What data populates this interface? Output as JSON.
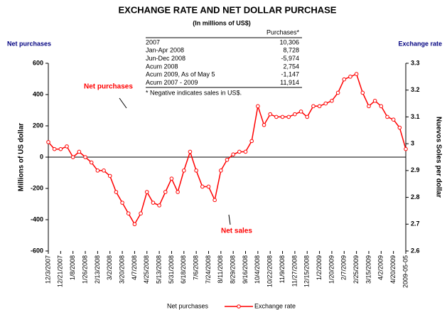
{
  "chart_data": {
    "type": "line",
    "title": "EXCHANGE RATE AND NET DOLLAR PURCHASE",
    "subtitle": "(In millions of US$)",
    "y_label_top": "Net purchases",
    "y2_label_top": "Exchange rate",
    "y_label": "Millions of US dollar",
    "y2_label": "Nuevos Soles per dollar",
    "annotations": [
      "Net purchases",
      "Net sales"
    ],
    "table": {
      "header": "Purchases*",
      "rows": [
        [
          "2007",
          "10,306"
        ],
        [
          "Jan-Apr 2008",
          "8,728"
        ],
        [
          "Jun-Dec 2008",
          "-5,974"
        ],
        [
          "Acum 2008",
          "2,754"
        ],
        [
          "Acum 2009, As of May 5",
          "-1,147"
        ],
        [
          "Acum 2007 - 2009",
          "11,914"
        ]
      ],
      "note": "* Negative indicates sales in US$."
    },
    "categories": [
      "12/3/2007",
      null,
      "12/21/2007",
      null,
      "1/8/2008",
      null,
      "1/26/2008",
      null,
      "2/13/2008",
      null,
      "3/2/2008",
      null,
      "3/20/2008",
      null,
      "4/7/2008",
      null,
      "4/25/2008",
      null,
      "5/13/2008",
      null,
      "5/31/2008",
      null,
      "6/18/2008",
      null,
      "7/6/2008",
      null,
      "7/24/2008",
      null,
      "8/11/2008",
      null,
      "8/29/2008",
      null,
      "9/16/2008",
      null,
      "10/4/2008",
      null,
      "10/22/2008",
      null,
      "11/9/2008",
      null,
      "11/27/2008",
      null,
      "12/15/2008",
      null,
      "1/2/2009",
      null,
      "1/20/2009",
      null,
      "2/7/2009",
      null,
      "2/25/2009",
      null,
      "3/15/2009",
      null,
      "4/2/2009",
      null,
      "4/20/2009",
      null,
      "2009-05-05"
    ],
    "series": [
      {
        "name": "Net purchases",
        "axis": "y",
        "values": [
          null,
          null,
          null,
          null,
          null,
          null,
          null,
          null,
          null,
          null,
          null,
          null,
          null,
          null,
          null,
          null,
          null,
          null,
          null,
          null,
          null,
          null,
          null,
          null,
          null,
          null,
          null,
          null,
          null,
          null,
          null,
          null,
          null,
          null,
          null,
          null,
          null,
          null,
          null,
          null,
          null,
          null,
          null,
          null,
          null,
          null,
          null,
          null,
          null,
          null,
          null,
          null,
          null,
          null,
          null,
          null,
          null,
          null,
          null
        ]
      },
      {
        "name": "Exchange rate",
        "axis": "y2",
        "color": "#ff0000",
        "values": [
          3.006,
          2.98,
          2.98,
          2.99,
          2.95,
          2.97,
          2.95,
          2.93,
          2.9,
          2.9,
          2.88,
          2.82,
          2.78,
          2.74,
          2.7,
          2.74,
          2.82,
          2.78,
          2.77,
          2.82,
          2.87,
          2.82,
          2.9,
          2.97,
          2.9,
          2.84,
          2.84,
          2.79,
          2.9,
          2.94,
          2.96,
          2.97,
          2.97,
          3.01,
          3.14,
          3.07,
          3.11,
          3.1,
          3.1,
          3.1,
          3.11,
          3.12,
          3.1,
          3.14,
          3.14,
          3.15,
          3.16,
          3.19,
          3.24,
          3.25,
          3.26,
          3.19,
          3.14,
          3.16,
          3.14,
          3.1,
          3.09,
          3.06,
          2.98
        ]
      }
    ],
    "ylim": [
      -600,
      600
    ],
    "yticks": [
      -600,
      -400,
      -200,
      0,
      200,
      400,
      600
    ],
    "y2lim": [
      2.6,
      3.3
    ],
    "y2ticks": [
      2.6,
      2.7,
      2.8,
      2.9,
      3,
      3.1,
      3.2,
      3.3
    ]
  }
}
